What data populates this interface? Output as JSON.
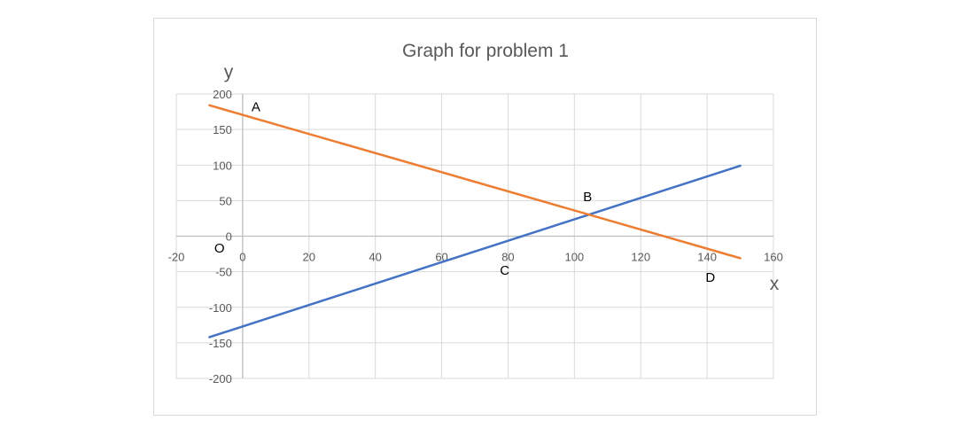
{
  "chart_data": {
    "type": "line",
    "title": "Graph for problem 1",
    "xlabel": "x",
    "ylabel": "y",
    "xlim": [
      -20,
      160
    ],
    "ylim": [
      -200,
      200
    ],
    "x_ticks": [
      -20,
      0,
      20,
      40,
      60,
      80,
      100,
      120,
      140,
      160
    ],
    "y_ticks": [
      -200,
      -150,
      -100,
      -50,
      0,
      50,
      100,
      150,
      200
    ],
    "grid": true,
    "series": [
      {
        "color": "#4472c4",
        "points": [
          [
            -10,
            -142
          ],
          [
            150,
            99
          ]
        ]
      },
      {
        "color": "#ed7d31",
        "points": [
          [
            -10,
            184
          ],
          [
            150,
            -31
          ]
        ]
      }
    ],
    "annotations": [
      {
        "text": "A",
        "x": 4,
        "y": 176
      },
      {
        "text": "B",
        "x": 104,
        "y": 49
      },
      {
        "text": "C",
        "x": 79,
        "y": -54
      },
      {
        "text": "D",
        "x": 141,
        "y": -64
      },
      {
        "text": "O",
        "x": -7,
        "y": -23
      }
    ]
  }
}
